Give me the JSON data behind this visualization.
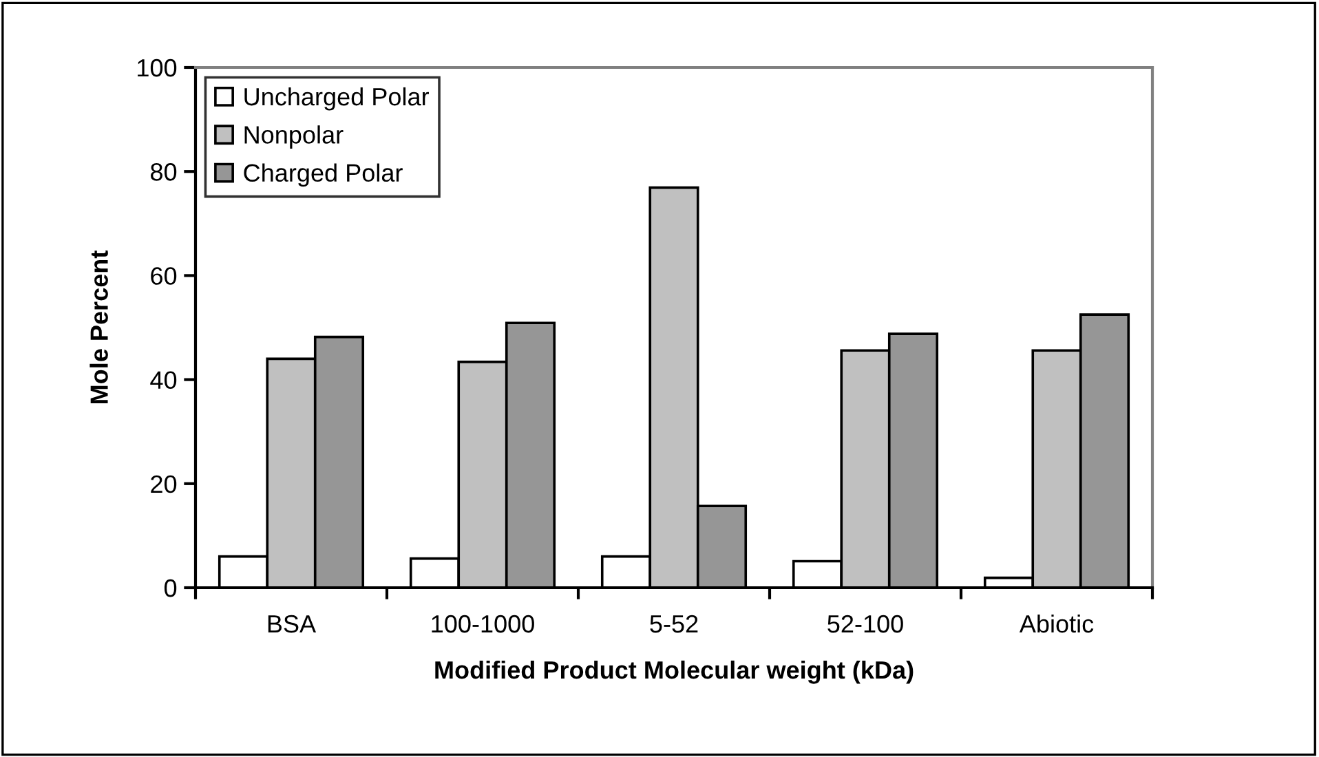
{
  "chart_data": {
    "type": "bar",
    "xlabel": "Modified Product Molecular weight (kDa)",
    "ylabel": "Mole Percent",
    "categories": [
      "BSA",
      "100-1000",
      "5-52",
      "52-100",
      "Abiotic"
    ],
    "series": [
      {
        "name": "Uncharged Polar",
        "color": "#ffffff",
        "values": [
          6.0,
          5.6,
          6.0,
          5.1,
          1.9
        ]
      },
      {
        "name": "Nonpolar",
        "color": "#c0c0c0",
        "values": [
          44.0,
          43.4,
          76.9,
          45.6,
          45.6
        ]
      },
      {
        "name": "Charged Polar",
        "color": "#969696",
        "values": [
          48.2,
          50.9,
          15.7,
          48.8,
          52.5
        ]
      }
    ],
    "ylim": [
      0,
      100
    ],
    "yticks": [
      0,
      20,
      40,
      60,
      80,
      100
    ],
    "grid": false,
    "legend": "top left"
  }
}
